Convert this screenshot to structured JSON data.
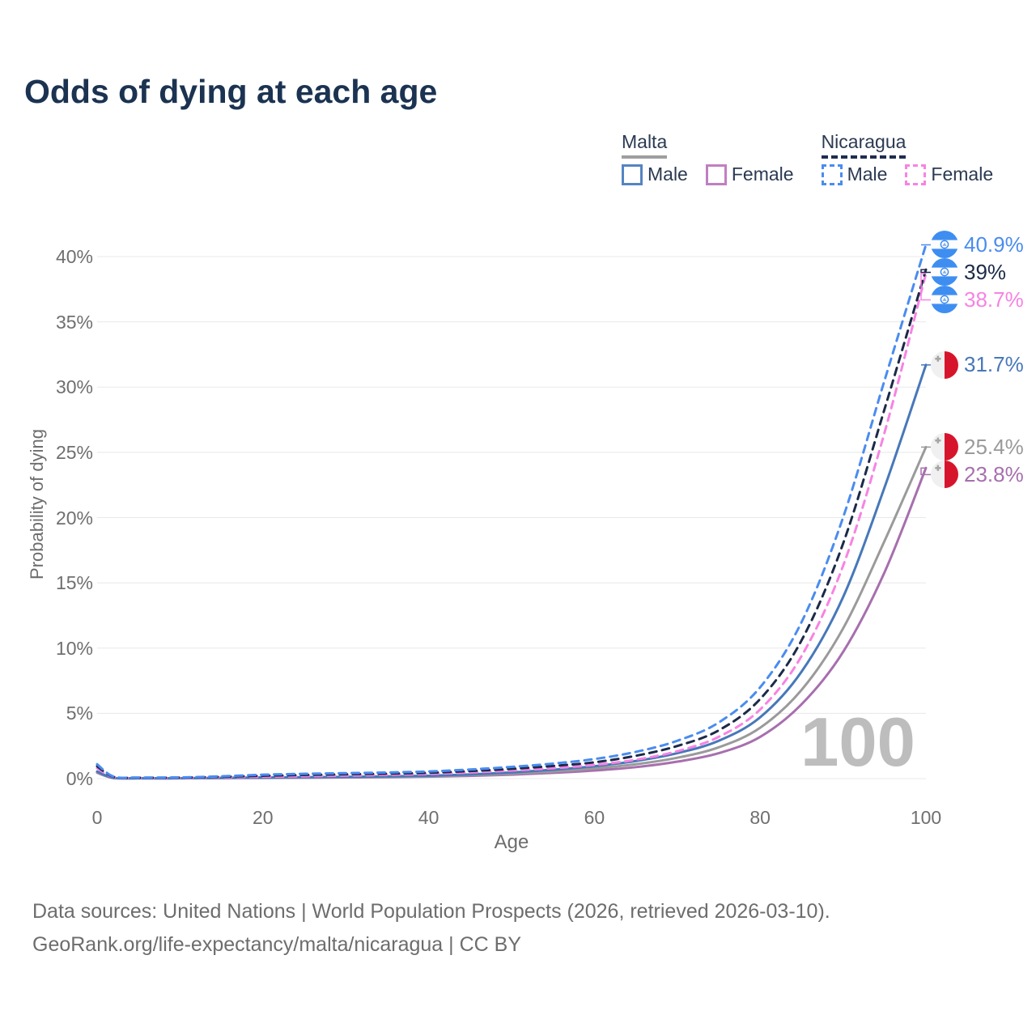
{
  "title": "Odds of dying at each age",
  "legend": {
    "groups": [
      {
        "label": "Malta",
        "line_style": "solid",
        "underline_color": "#9e9e9e",
        "items": [
          {
            "label": "Male",
            "color": "#5585c2"
          },
          {
            "label": "Female",
            "color": "#c07fc1"
          }
        ]
      },
      {
        "label": "Nicaragua",
        "line_style": "dashed",
        "underline_color": "#1e2d4f",
        "items": [
          {
            "label": "Male",
            "color": "#4a8cf0"
          },
          {
            "label": "Female",
            "color": "#f783e3"
          }
        ]
      }
    ]
  },
  "chart_data": {
    "type": "line",
    "title": "Odds of dying at each age",
    "xlabel": "Age",
    "ylabel": "Probability of dying",
    "xlim": [
      0,
      100
    ],
    "ylim": [
      0,
      42
    ],
    "xticks": [
      0,
      20,
      40,
      60,
      80,
      100
    ],
    "yticks": [
      0,
      5,
      10,
      15,
      20,
      25,
      30,
      35,
      40
    ],
    "ytick_suffix": "%",
    "grid": "horizontal",
    "legend_position": "top-right",
    "watermark": "100",
    "x": [
      0,
      2,
      5,
      10,
      15,
      20,
      25,
      30,
      35,
      40,
      45,
      50,
      55,
      60,
      65,
      70,
      75,
      80,
      85,
      90,
      95,
      100
    ],
    "series": [
      {
        "name": "Nicaragua Male",
        "country": "nicaragua",
        "sex": "Male",
        "color": "#4a8cf0",
        "dashed": true,
        "end_label": "40.9%",
        "end_value": 40.9,
        "values": [
          1.1,
          0.15,
          0.08,
          0.09,
          0.18,
          0.3,
          0.37,
          0.42,
          0.47,
          0.55,
          0.7,
          0.9,
          1.15,
          1.5,
          2.05,
          2.9,
          4.3,
          7.0,
          12.0,
          20.0,
          30.5,
          40.9
        ]
      },
      {
        "name": "Nicaragua Both sexes",
        "country": "nicaragua",
        "sex": "Both",
        "color": "#1c2a49",
        "dashed": true,
        "end_label": "39%",
        "end_value": 39,
        "values": [
          0.95,
          0.13,
          0.07,
          0.08,
          0.14,
          0.22,
          0.28,
          0.33,
          0.38,
          0.45,
          0.58,
          0.75,
          0.97,
          1.25,
          1.75,
          2.5,
          3.7,
          6.1,
          10.6,
          18.0,
          28.3,
          39.0
        ]
      },
      {
        "name": "Nicaragua Female",
        "country": "nicaragua",
        "sex": "Female",
        "color": "#f783e3",
        "dashed": true,
        "end_label": "38.7%",
        "end_value": 38.7,
        "values": [
          0.8,
          0.11,
          0.06,
          0.06,
          0.1,
          0.14,
          0.18,
          0.23,
          0.29,
          0.36,
          0.47,
          0.62,
          0.8,
          1.05,
          1.45,
          2.1,
          3.2,
          5.3,
          9.4,
          16.3,
          26.5,
          38.7
        ]
      },
      {
        "name": "Malta Male",
        "country": "malta",
        "sex": "Male",
        "color": "#4778b9",
        "dashed": false,
        "end_label": "31.7%",
        "end_value": 31.7,
        "values": [
          0.55,
          0.05,
          0.03,
          0.03,
          0.06,
          0.09,
          0.11,
          0.13,
          0.17,
          0.22,
          0.32,
          0.47,
          0.68,
          0.95,
          1.35,
          1.95,
          2.9,
          4.7,
          8.2,
          13.9,
          22.3,
          31.7
        ]
      },
      {
        "name": "Malta Both sexes",
        "country": "malta",
        "sex": "Both",
        "color": "#9a9a9a",
        "dashed": false,
        "end_label": "25.4%",
        "end_value": 25.4,
        "values": [
          0.5,
          0.04,
          0.02,
          0.03,
          0.05,
          0.07,
          0.09,
          0.11,
          0.14,
          0.18,
          0.26,
          0.38,
          0.55,
          0.78,
          1.1,
          1.6,
          2.4,
          3.9,
          6.8,
          11.5,
          18.2,
          25.4
        ]
      },
      {
        "name": "Malta Female",
        "country": "malta",
        "sex": "Female",
        "color": "#a76fae",
        "dashed": false,
        "end_label": "23.8%",
        "end_value": 23.8,
        "values": [
          0.45,
          0.04,
          0.02,
          0.02,
          0.04,
          0.05,
          0.07,
          0.09,
          0.11,
          0.15,
          0.21,
          0.3,
          0.44,
          0.62,
          0.88,
          1.3,
          1.95,
          3.2,
          5.7,
          9.7,
          15.8,
          23.8
        ]
      }
    ],
    "flag_colors": {
      "nicaragua_blue": "#3e8ef2",
      "malta_red": "#d6152c",
      "malta_white": "#f0f0f0"
    }
  },
  "footer": {
    "line1": "Data sources: United Nations | World Population Prospects (2026, retrieved 2026-03-10).",
    "line2": "GeoRank.org/life-expectancy/malta/nicaragua | CC BY"
  }
}
